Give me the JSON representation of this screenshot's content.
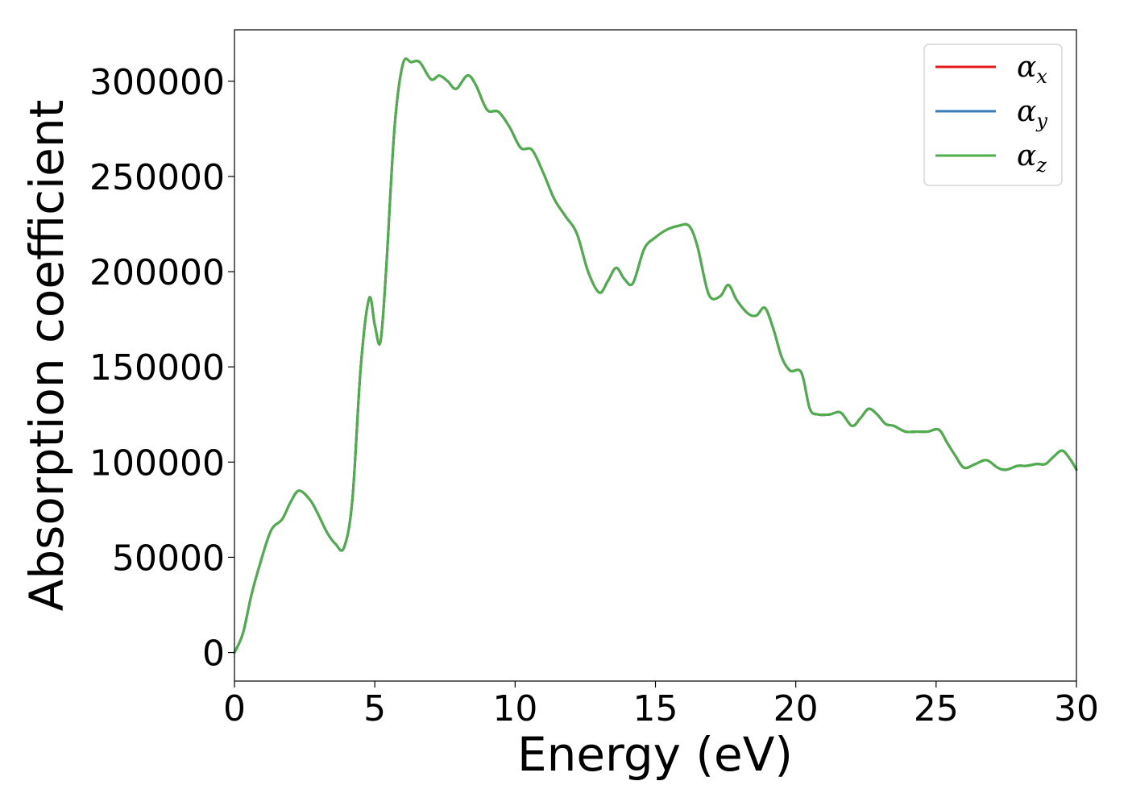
{
  "chart_data": {
    "type": "line",
    "xlabel": "Energy (eV)",
    "ylabel": "Absorption coefficient",
    "xlim": [
      0,
      30
    ],
    "ylim": [
      -15000,
      327000
    ],
    "xticks": [
      0,
      5,
      10,
      15,
      20,
      25,
      30
    ],
    "yticks": [
      0,
      50000,
      100000,
      150000,
      200000,
      250000,
      300000
    ],
    "xtick_labels": [
      "0",
      "5",
      "10",
      "15",
      "20",
      "25",
      "30"
    ],
    "ytick_labels": [
      "0",
      "50000",
      "100000",
      "150000",
      "200000",
      "250000",
      "300000"
    ],
    "grid": false,
    "legend_position": "upper right",
    "x": [
      0,
      0.3,
      0.6,
      0.9,
      1.3,
      1.7,
      2.0,
      2.3,
      2.7,
      3.0,
      3.3,
      3.6,
      3.9,
      4.2,
      4.5,
      4.8,
      5.0,
      5.2,
      5.4,
      5.7,
      6.0,
      6.3,
      6.6,
      7.0,
      7.3,
      7.6,
      7.9,
      8.3,
      8.6,
      9.0,
      9.4,
      9.8,
      10.2,
      10.6,
      11.0,
      11.4,
      11.8,
      12.2,
      12.6,
      13.0,
      13.3,
      13.6,
      13.9,
      14.2,
      14.6,
      15.0,
      15.4,
      15.8,
      16.2,
      16.5,
      16.9,
      17.3,
      17.6,
      17.9,
      18.3,
      18.6,
      18.9,
      19.2,
      19.5,
      19.8,
      20.2,
      20.5,
      20.8,
      21.2,
      21.6,
      22.0,
      22.3,
      22.6,
      22.9,
      23.2,
      23.5,
      23.9,
      24.3,
      24.7,
      25.1,
      25.4,
      25.7,
      26.0,
      26.4,
      26.8,
      27.2,
      27.5,
      27.9,
      28.2,
      28.6,
      28.9,
      29.2,
      29.5,
      29.8,
      30.0
    ],
    "series": [
      {
        "name": "α_x",
        "color": "#e41a1c",
        "values": [
          0,
          10000,
          30000,
          46000,
          64000,
          70000,
          79000,
          85000,
          80000,
          72000,
          63000,
          57000,
          55000,
          80000,
          150000,
          186000,
          172000,
          163000,
          200000,
          275000,
          309000,
          310000,
          310000,
          301000,
          303000,
          300000,
          296000,
          303000,
          298000,
          285000,
          284000,
          276000,
          265000,
          264000,
          252000,
          238000,
          229000,
          220000,
          200000,
          189000,
          195000,
          202000,
          196000,
          194000,
          212000,
          218000,
          222000,
          224000,
          224000,
          213000,
          188000,
          187000,
          193000,
          185000,
          178000,
          177000,
          181000,
          170000,
          155000,
          148000,
          147000,
          128000,
          125000,
          125000,
          126000,
          119000,
          123000,
          128000,
          125000,
          120000,
          119000,
          116000,
          116000,
          116000,
          117000,
          110000,
          103000,
          97000,
          99000,
          101000,
          97000,
          96000,
          98000,
          98000,
          99000,
          99000,
          103000,
          106000,
          101000,
          96000
        ]
      },
      {
        "name": "α_y",
        "color": "#377eb8",
        "values": [
          0,
          10000,
          30000,
          46000,
          64000,
          70000,
          79000,
          85000,
          80000,
          72000,
          63000,
          57000,
          55000,
          80000,
          150000,
          186000,
          172000,
          163000,
          200000,
          275000,
          309000,
          310000,
          310000,
          301000,
          303000,
          300000,
          296000,
          303000,
          298000,
          285000,
          284000,
          276000,
          265000,
          264000,
          252000,
          238000,
          229000,
          220000,
          200000,
          189000,
          195000,
          202000,
          196000,
          194000,
          212000,
          218000,
          222000,
          224000,
          224000,
          213000,
          188000,
          187000,
          193000,
          185000,
          178000,
          177000,
          181000,
          170000,
          155000,
          148000,
          147000,
          128000,
          125000,
          125000,
          126000,
          119000,
          123000,
          128000,
          125000,
          120000,
          119000,
          116000,
          116000,
          116000,
          117000,
          110000,
          103000,
          97000,
          99000,
          101000,
          97000,
          96000,
          98000,
          98000,
          99000,
          99000,
          103000,
          106000,
          101000,
          96000
        ]
      },
      {
        "name": "α_z",
        "color": "#4daf4a",
        "values": [
          0,
          10000,
          30000,
          46000,
          64000,
          70000,
          79000,
          85000,
          80000,
          72000,
          63000,
          57000,
          55000,
          80000,
          150000,
          186000,
          172000,
          163000,
          200000,
          275000,
          309000,
          310000,
          310000,
          301000,
          303000,
          300000,
          296000,
          303000,
          298000,
          285000,
          284000,
          276000,
          265000,
          264000,
          252000,
          238000,
          229000,
          220000,
          200000,
          189000,
          195000,
          202000,
          196000,
          194000,
          212000,
          218000,
          222000,
          224000,
          224000,
          213000,
          188000,
          187000,
          193000,
          185000,
          178000,
          177000,
          181000,
          170000,
          155000,
          148000,
          147000,
          128000,
          125000,
          125000,
          126000,
          119000,
          123000,
          128000,
          125000,
          120000,
          119000,
          116000,
          116000,
          116000,
          117000,
          110000,
          103000,
          97000,
          99000,
          101000,
          97000,
          96000,
          98000,
          98000,
          99000,
          99000,
          103000,
          106000,
          101000,
          96000
        ]
      }
    ],
    "legend": [
      {
        "symbol": "α",
        "sub": "x",
        "color": "#e41a1c"
      },
      {
        "symbol": "α",
        "sub": "y",
        "color": "#377eb8"
      },
      {
        "symbol": "α",
        "sub": "z",
        "color": "#4daf4a"
      }
    ]
  }
}
